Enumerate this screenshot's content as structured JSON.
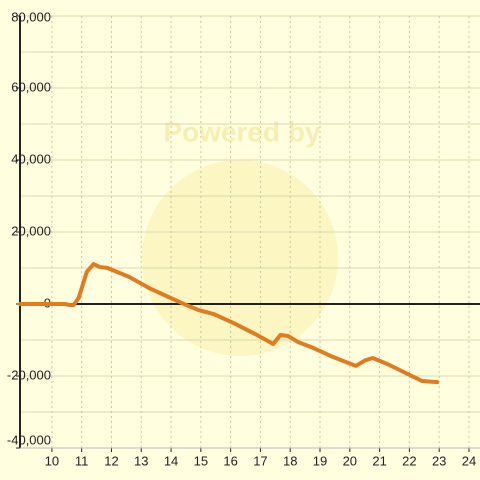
{
  "chart_data": {
    "type": "line",
    "watermark": "Powered by",
    "x": [
      8.93,
      10.43,
      10.6,
      10.73,
      10.9,
      11.17,
      11.4,
      11.6,
      11.87,
      12.6,
      13.27,
      13.93,
      14.6,
      14.93,
      15.43,
      16.1,
      16.77,
      17.43,
      17.67,
      17.93,
      18.27,
      18.77,
      19.43,
      20.2,
      20.53,
      20.77,
      21.27,
      21.93,
      22.43,
      22.93
    ],
    "series": [
      {
        "color": "#e07b20",
        "values": [
          0,
          0,
          -300,
          -300,
          1700,
          8900,
          11100,
          10300,
          10000,
          7500,
          4400,
          1900,
          -600,
          -1700,
          -2800,
          -5300,
          -8100,
          -11100,
          -8600,
          -8900,
          -10600,
          -12200,
          -14700,
          -17200,
          -15600,
          -15000,
          -16700,
          -19400,
          -21400,
          -21700
        ]
      }
    ],
    "xlim": [
      8.93,
      24.37
    ],
    "xticks": [
      10,
      11,
      12,
      13,
      14,
      15,
      16,
      17,
      18,
      19,
      20,
      21,
      22,
      23,
      24
    ],
    "ylim": [
      -40000,
      80000
    ],
    "yticks": [
      {
        "value": 80000,
        "label": "80,000"
      },
      {
        "value": 60000,
        "label": "60,000"
      },
      {
        "value": 40000,
        "label": "40,000"
      },
      {
        "value": 20000,
        "label": "20,000"
      },
      0,
      {
        "value": -20000,
        "label": "-20,000"
      },
      {
        "value": -40000,
        "label": "-40,000"
      }
    ],
    "y_minor_grid": [
      70000,
      50000,
      30000,
      10000,
      -10000,
      -30000
    ],
    "grid": true
  }
}
